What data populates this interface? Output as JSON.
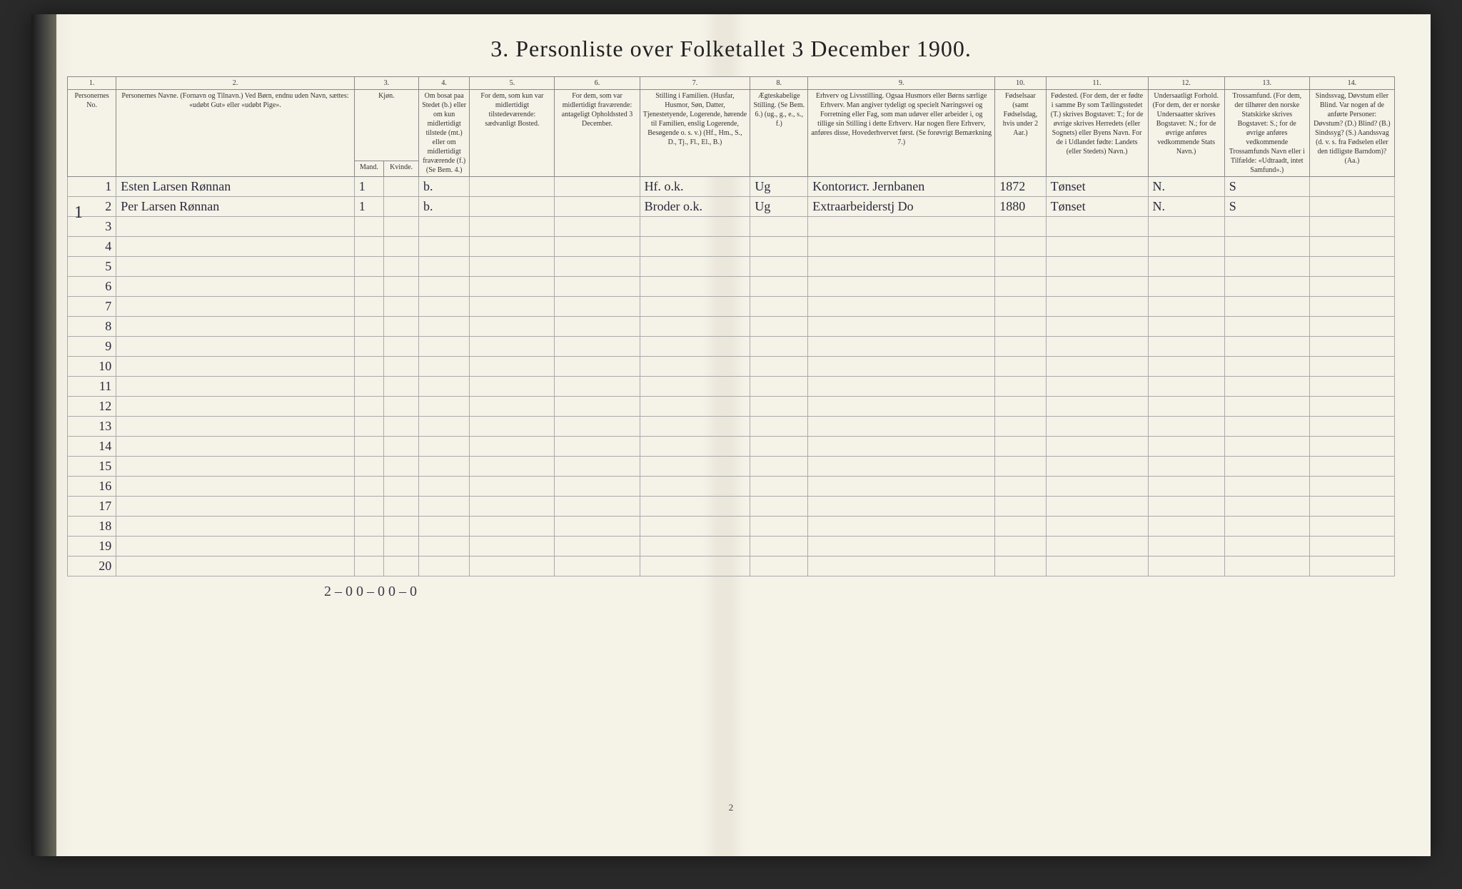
{
  "title": "3. Personliste over Folketallet 3 December 1900.",
  "column_numbers": [
    "1.",
    "2.",
    "3.",
    "4.",
    "5.",
    "6.",
    "7.",
    "8.",
    "9.",
    "10.",
    "11.",
    "12.",
    "13.",
    "14."
  ],
  "headers": {
    "col1": "Personernes No.",
    "col2": "Personernes Navne.\n(Fornavn og Tilnavn.)\nVed Børn, endnu uden Navn, sættes: «udøbt Gut» eller «udøbt Pige».",
    "col3": "Kjøn.",
    "col3_m": "Mand.",
    "col3_k": "Kvinde.",
    "col4": "Om bosat paa Stedet (b.) eller om kun midlertidigt tilstede (mt.) eller om midlertidigt fraværende (f.) (Se Bem. 4.)",
    "col5": "For dem, som kun var midlertidigt tilstedeværende:\nsædvanligt Bosted.",
    "col6": "For dem, som var midlertidigt fraværende:\nantageligt Opholdssted 3 December.",
    "col7": "Stilling i Familien.\n(Husfar, Husmor, Søn, Datter, Tjenestetyende, Logerende, hørende til Familien, enslig Logerende, Besøgende o. s. v.)\n(Hf., Hm., S., D., Tj., Fl., El., B.)",
    "col8": "Ægteskabelige Stilling.\n(Se Bem. 6.)\n(ug., g., e., s., f.)",
    "col9": "Erhverv og Livsstilling.\nOgsaa Husmors eller Børns særlige Erhverv. Man angiver tydeligt og specielt Næringsvei og Forretning eller Fag, som man udøver eller arbeider i, og tillige sin Stilling i dette Erhverv. Har nogen flere Erhverv, anføres disse, Hovederhvervet først.\n(Se forøvrigt Bemærkning 7.)",
    "col10": "Fødselsaar\n(samt Fødselsdag, hvis under 2 Aar.)",
    "col11": "Fødested.\n(For dem, der er fødte i samme By som Tællingsstedet (T.) skrives Bogstavet: T.; for de øvrige skrives Herredets (eller Sognets) eller Byens Navn. For de i Udlandet fødte: Landets (eller Stedets) Navn.)",
    "col12": "Undersaatligt Forhold.\n(For dem, der er norske Undersaatter skrives Bogstavet: N.; for de øvrige anføres vedkommende Stats Navn.)",
    "col13": "Trossamfund.\n(For dem, der tilhører den norske Statskirke skrives Bogstavet: S.; for de øvrige anføres vedkommende Trossamfunds Navn eller i Tilfælde: «Udtraadt, intet Samfund».)",
    "col14": "Sindssvag, Døvstum eller Blind.\nVar nogen af de anførte Personer: Døvstum? (D.) Blind? (B.) Sindssyg? (S.) Aandssvag (d. v. s. fra Fødselen eller den tidligste Barndom)? (Aa.)"
  },
  "rows": [
    {
      "num": "1",
      "name": "Esten Larsen Rønnan",
      "sex_m": "1",
      "sex_k": "",
      "bosat": "b.",
      "col5": "",
      "col6": "",
      "stilling": "Hf. o.k.",
      "aegte": "Ug",
      "erhverv": "Kontorист. Jernbanen",
      "fodselsaar": "1872",
      "fodested": "Tønset",
      "forhold": "N.",
      "tros": "S",
      "col14": ""
    },
    {
      "num": "2",
      "name": "Per Larsen Rønnan",
      "sex_m": "1",
      "sex_k": "",
      "bosat": "b.",
      "col5": "",
      "col6": "",
      "stilling": "Broder o.k.",
      "aegte": "Ug",
      "erhverv": "Extraarbeiderstj Do",
      "fodselsaar": "1880",
      "fodested": "Tønset",
      "forhold": "N.",
      "tros": "S",
      "col14": ""
    }
  ],
  "empty_rows": [
    "3",
    "4",
    "5",
    "6",
    "7",
    "8",
    "9",
    "10",
    "11",
    "12",
    "13",
    "14",
    "15",
    "16",
    "17",
    "18",
    "19",
    "20"
  ],
  "footer_tally": "2 – 0  0 – 0  0 –   0",
  "page_number": "2",
  "left_margin_mark": "1",
  "colors": {
    "paper": "#f5f2e8",
    "ink": "#2a2a3a",
    "rule": "#888",
    "background": "#2a2a2a"
  }
}
